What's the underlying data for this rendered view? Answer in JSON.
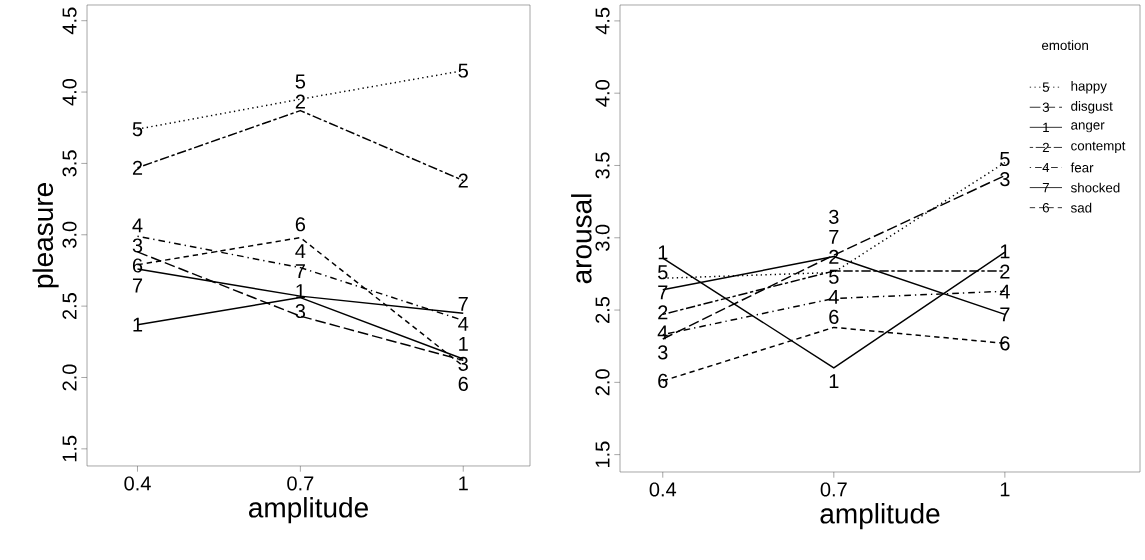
{
  "chart_data": [
    {
      "type": "line",
      "xlabel": "amplitude",
      "ylabel": "pleasure",
      "categories": [
        "0.4",
        "0.7",
        "1"
      ],
      "ylim": [
        1.38,
        4.61
      ],
      "yticks": [
        {
          "value": 1.5,
          "label": "1.5"
        },
        {
          "value": 2,
          "label": "2.0"
        },
        {
          "value": 2.5,
          "label": "2.5"
        },
        {
          "value": 3,
          "label": "3.0"
        },
        {
          "value": 3.5,
          "label": "3.5"
        },
        {
          "value": 4,
          "label": "4.0"
        },
        {
          "value": 4.5,
          "label": "4.5"
        }
      ],
      "series": [
        {
          "color": "#000000",
          "line_style": "dotted",
          "values": [
            3.74,
            3.95,
            4.15
          ]
        },
        {
          "color": "#000000",
          "line_style": "longdash",
          "values": [
            2.88,
            2.43,
            2.12
          ]
        },
        {
          "color": "#000000",
          "line_style": "solid",
          "values": [
            2.37,
            2.56,
            2.13
          ]
        },
        {
          "color": "#000000",
          "line_style": "twodash",
          "values": [
            3.47,
            3.87,
            3.38
          ]
        },
        {
          "color": "#000000",
          "line_style": "dashdot",
          "values": [
            2.99,
            2.77,
            2.4
          ]
        },
        {
          "color": "#000000",
          "line_style": "solid",
          "values": [
            2.76,
            2.57,
            2.45
          ]
        },
        {
          "color": "#000000",
          "line_style": "dashed",
          "values": [
            2.79,
            2.98,
            2.08
          ]
        }
      ],
      "annotations": [
        {
          "text": "5",
          "x": "0.4",
          "y": 3.74
        },
        {
          "text": "5",
          "x": "0.7",
          "y": 3.95
        },
        {
          "text": "5",
          "x": "1",
          "y": 4.15
        },
        {
          "text": "3",
          "x": "0.4",
          "y": 2.88
        },
        {
          "text": "3",
          "x": "0.7",
          "y": 2.43
        },
        {
          "text": "3",
          "x": "1",
          "y": 2.12
        },
        {
          "text": "1",
          "x": "0.4",
          "y": 2.37
        },
        {
          "text": "1",
          "x": "0.7",
          "y": 2.56
        },
        {
          "text": "1",
          "x": "1",
          "y": 2.13
        },
        {
          "text": "2",
          "x": "0.4",
          "y": 3.47
        },
        {
          "text": "2",
          "x": "0.7",
          "y": 3.87
        },
        {
          "text": "2",
          "x": "1",
          "y": 3.38
        },
        {
          "text": "4",
          "x": "0.4",
          "y": 2.99
        },
        {
          "text": "4",
          "x": "0.7",
          "y": 2.77
        },
        {
          "text": "4",
          "x": "1",
          "y": 2.4
        },
        {
          "text": "7",
          "x": "0.4",
          "y": 2.76
        },
        {
          "text": "7",
          "x": "0.7",
          "y": 2.57
        },
        {
          "text": "7",
          "x": "1",
          "y": 2.45
        },
        {
          "text": "6",
          "x": "0.4",
          "y": 2.79
        },
        {
          "text": "6",
          "x": "0.7",
          "y": 2.98
        },
        {
          "text": "6",
          "x": "1",
          "y": 2.08
        }
      ]
    },
    {
      "type": "line",
      "xlabel": "amplitude",
      "ylabel": "arousal",
      "categories": [
        "0.4",
        "0.7",
        "1"
      ],
      "ylim": [
        1.38,
        4.61
      ],
      "yticks": [
        {
          "value": 1.5,
          "label": "1.5"
        },
        {
          "value": 2,
          "label": "2.0"
        },
        {
          "value": 2.5,
          "label": "2.5"
        },
        {
          "value": 3,
          "label": "3.0"
        },
        {
          "value": 3.5,
          "label": "3.5"
        },
        {
          "value": 4,
          "label": "4.0"
        },
        {
          "value": 4.5,
          "label": "4.5"
        }
      ],
      "legend": "top right",
      "legend_title": "emotion",
      "series": [
        {
          "name": "happy",
          "color": "#000000",
          "line_style": "dotted",
          "values": [
            2.72,
            2.76,
            3.52
          ]
        },
        {
          "name": "disgust",
          "color": "#000000",
          "line_style": "longdash",
          "values": [
            2.3,
            2.88,
            3.43
          ]
        },
        {
          "name": "anger",
          "color": "#000000",
          "line_style": "solid",
          "values": [
            2.86,
            2.1,
            2.9
          ]
        },
        {
          "name": "contempt",
          "color": "#000000",
          "line_style": "twodash",
          "values": [
            2.47,
            2.77,
            2.77
          ]
        },
        {
          "name": "fear",
          "color": "#000000",
          "line_style": "dashdot",
          "values": [
            2.33,
            2.58,
            2.63
          ]
        },
        {
          "name": "shocked",
          "color": "#000000",
          "line_style": "solid",
          "values": [
            2.64,
            2.87,
            2.47
          ]
        },
        {
          "name": "sad",
          "color": "#000000",
          "line_style": "dashed",
          "values": [
            2.01,
            2.38,
            2.27
          ]
        }
      ],
      "annotations": [
        {
          "text": "5",
          "x": "0.4",
          "y": 2.72
        },
        {
          "text": "5",
          "x": "0.7",
          "y": 2.76
        },
        {
          "text": "5",
          "x": "1",
          "y": 3.52
        },
        {
          "text": "3",
          "x": "0.4",
          "y": 2.3
        },
        {
          "text": "3",
          "x": "0.7",
          "y": 2.88
        },
        {
          "text": "3",
          "x": "1",
          "y": 3.43
        },
        {
          "text": "1",
          "x": "0.4",
          "y": 2.86
        },
        {
          "text": "1",
          "x": "0.7",
          "y": 2.1
        },
        {
          "text": "1",
          "x": "1",
          "y": 2.9
        },
        {
          "text": "2",
          "x": "0.4",
          "y": 2.47
        },
        {
          "text": "2",
          "x": "0.7",
          "y": 2.77
        },
        {
          "text": "2",
          "x": "1",
          "y": 2.77
        },
        {
          "text": "4",
          "x": "0.4",
          "y": 2.33
        },
        {
          "text": "4",
          "x": "0.7",
          "y": 2.58
        },
        {
          "text": "4",
          "x": "1",
          "y": 2.63
        },
        {
          "text": "7",
          "x": "0.4",
          "y": 2.64
        },
        {
          "text": "7",
          "x": "0.7",
          "y": 2.87
        },
        {
          "text": "7",
          "x": "1",
          "y": 2.47
        },
        {
          "text": "6",
          "x": "0.4",
          "y": 2.01
        },
        {
          "text": "6",
          "x": "0.7",
          "y": 2.38
        },
        {
          "text": "6",
          "x": "1",
          "y": 2.27
        }
      ]
    }
  ]
}
